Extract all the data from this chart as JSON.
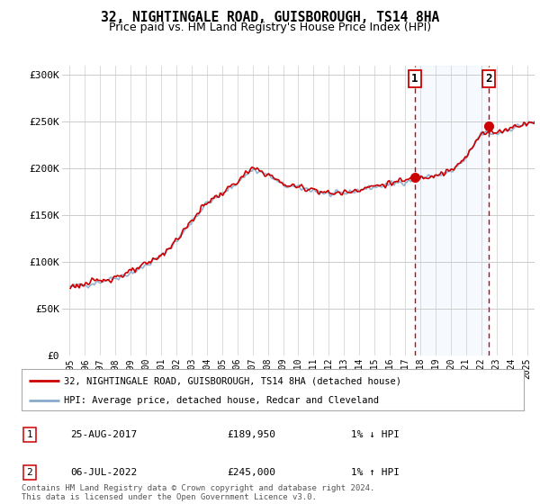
{
  "title": "32, NIGHTINGALE ROAD, GUISBOROUGH, TS14 8HA",
  "subtitle": "Price paid vs. HM Land Registry's House Price Index (HPI)",
  "legend_line1": "32, NIGHTINGALE ROAD, GUISBOROUGH, TS14 8HA (detached house)",
  "legend_line2": "HPI: Average price, detached house, Redcar and Cleveland",
  "transaction1_date": "25-AUG-2017",
  "transaction1_price": "£189,950",
  "transaction1_hpi": "1% ↓ HPI",
  "transaction2_date": "06-JUL-2022",
  "transaction2_price": "£245,000",
  "transaction2_hpi": "1% ↑ HPI",
  "footnote": "Contains HM Land Registry data © Crown copyright and database right 2024.\nThis data is licensed under the Open Government Licence v3.0.",
  "ylim": [
    0,
    310000
  ],
  "yticks": [
    0,
    50000,
    100000,
    150000,
    200000,
    250000,
    300000
  ],
  "ytick_labels": [
    "£0",
    "£50K",
    "£100K",
    "£150K",
    "£200K",
    "£250K",
    "£300K"
  ],
  "background_color": "#ffffff",
  "grid_color": "#cccccc",
  "line_color_red": "#cc0000",
  "line_color_blue": "#88aacc",
  "shade_color": "#ddeeff",
  "marker1_year": 2017.646,
  "marker1_value": 189950,
  "marker2_year": 2022.504,
  "marker2_value": 245000,
  "xlim_left": 1994.5,
  "xlim_right": 2025.5
}
